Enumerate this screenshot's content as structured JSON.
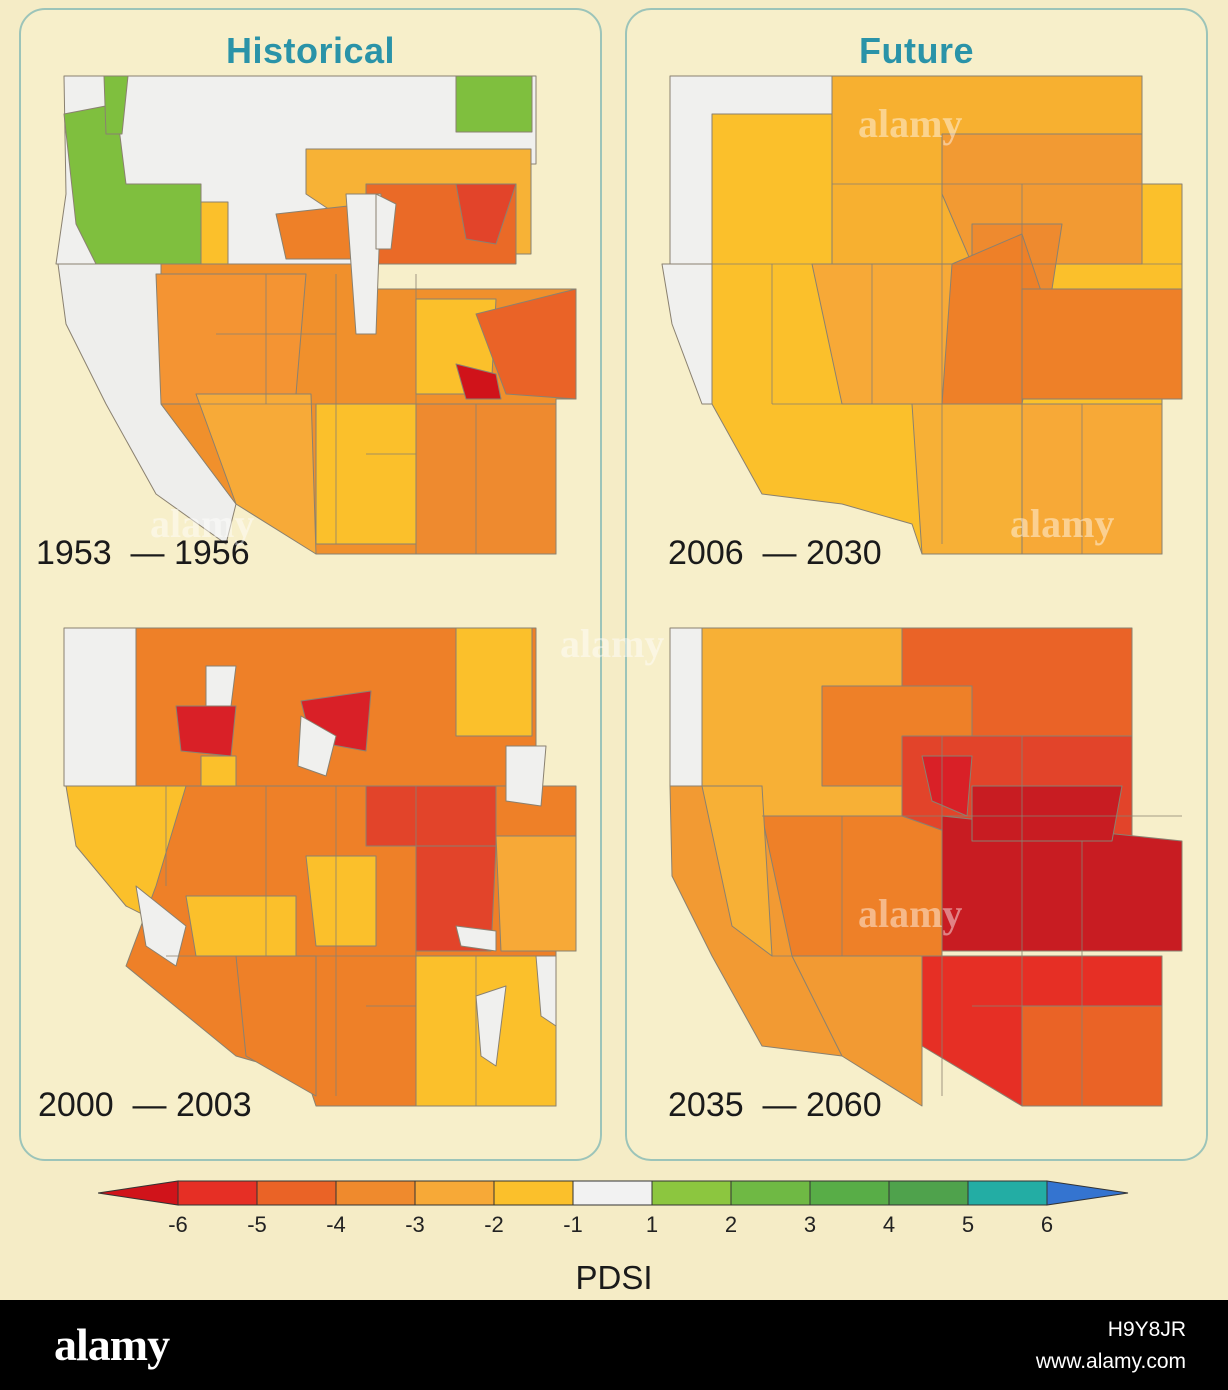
{
  "panels": {
    "historical": {
      "title": "Historical",
      "maps": [
        {
          "period": "1953  — 1956"
        },
        {
          "period": "2000  — 2003"
        }
      ]
    },
    "future": {
      "title": "Future",
      "maps": [
        {
          "period": "2006  — 2030"
        },
        {
          "period": "2035  — 2060"
        }
      ]
    }
  },
  "colorbar": {
    "label": "PDSI",
    "ticks": [
      "-6",
      "-5",
      "-4",
      "-3",
      "-2",
      "-1",
      "1",
      "2",
      "3",
      "4",
      "5",
      "6"
    ],
    "colors": {
      "below_-6": "#d0131a",
      "-6_-5": "#e62f25",
      "-5_-4": "#ea6326",
      "-4_-3": "#ef8a2d",
      "-3_-2": "#f7a937",
      "-2_-1": "#fbc02b",
      "-1_1": "#f2f2f2",
      "1_2": "#8cc63f",
      "2_3": "#6fb944",
      "3_4": "#58ad47",
      "4_5": "#4fa24c",
      "5_6": "#23ada4",
      "above_6": "#3474d0"
    }
  },
  "watermarks": {
    "text": "alamy"
  },
  "footer": {
    "logo": "alamy",
    "image_id": "H9Y8JR",
    "url": "www.alamy.com"
  }
}
